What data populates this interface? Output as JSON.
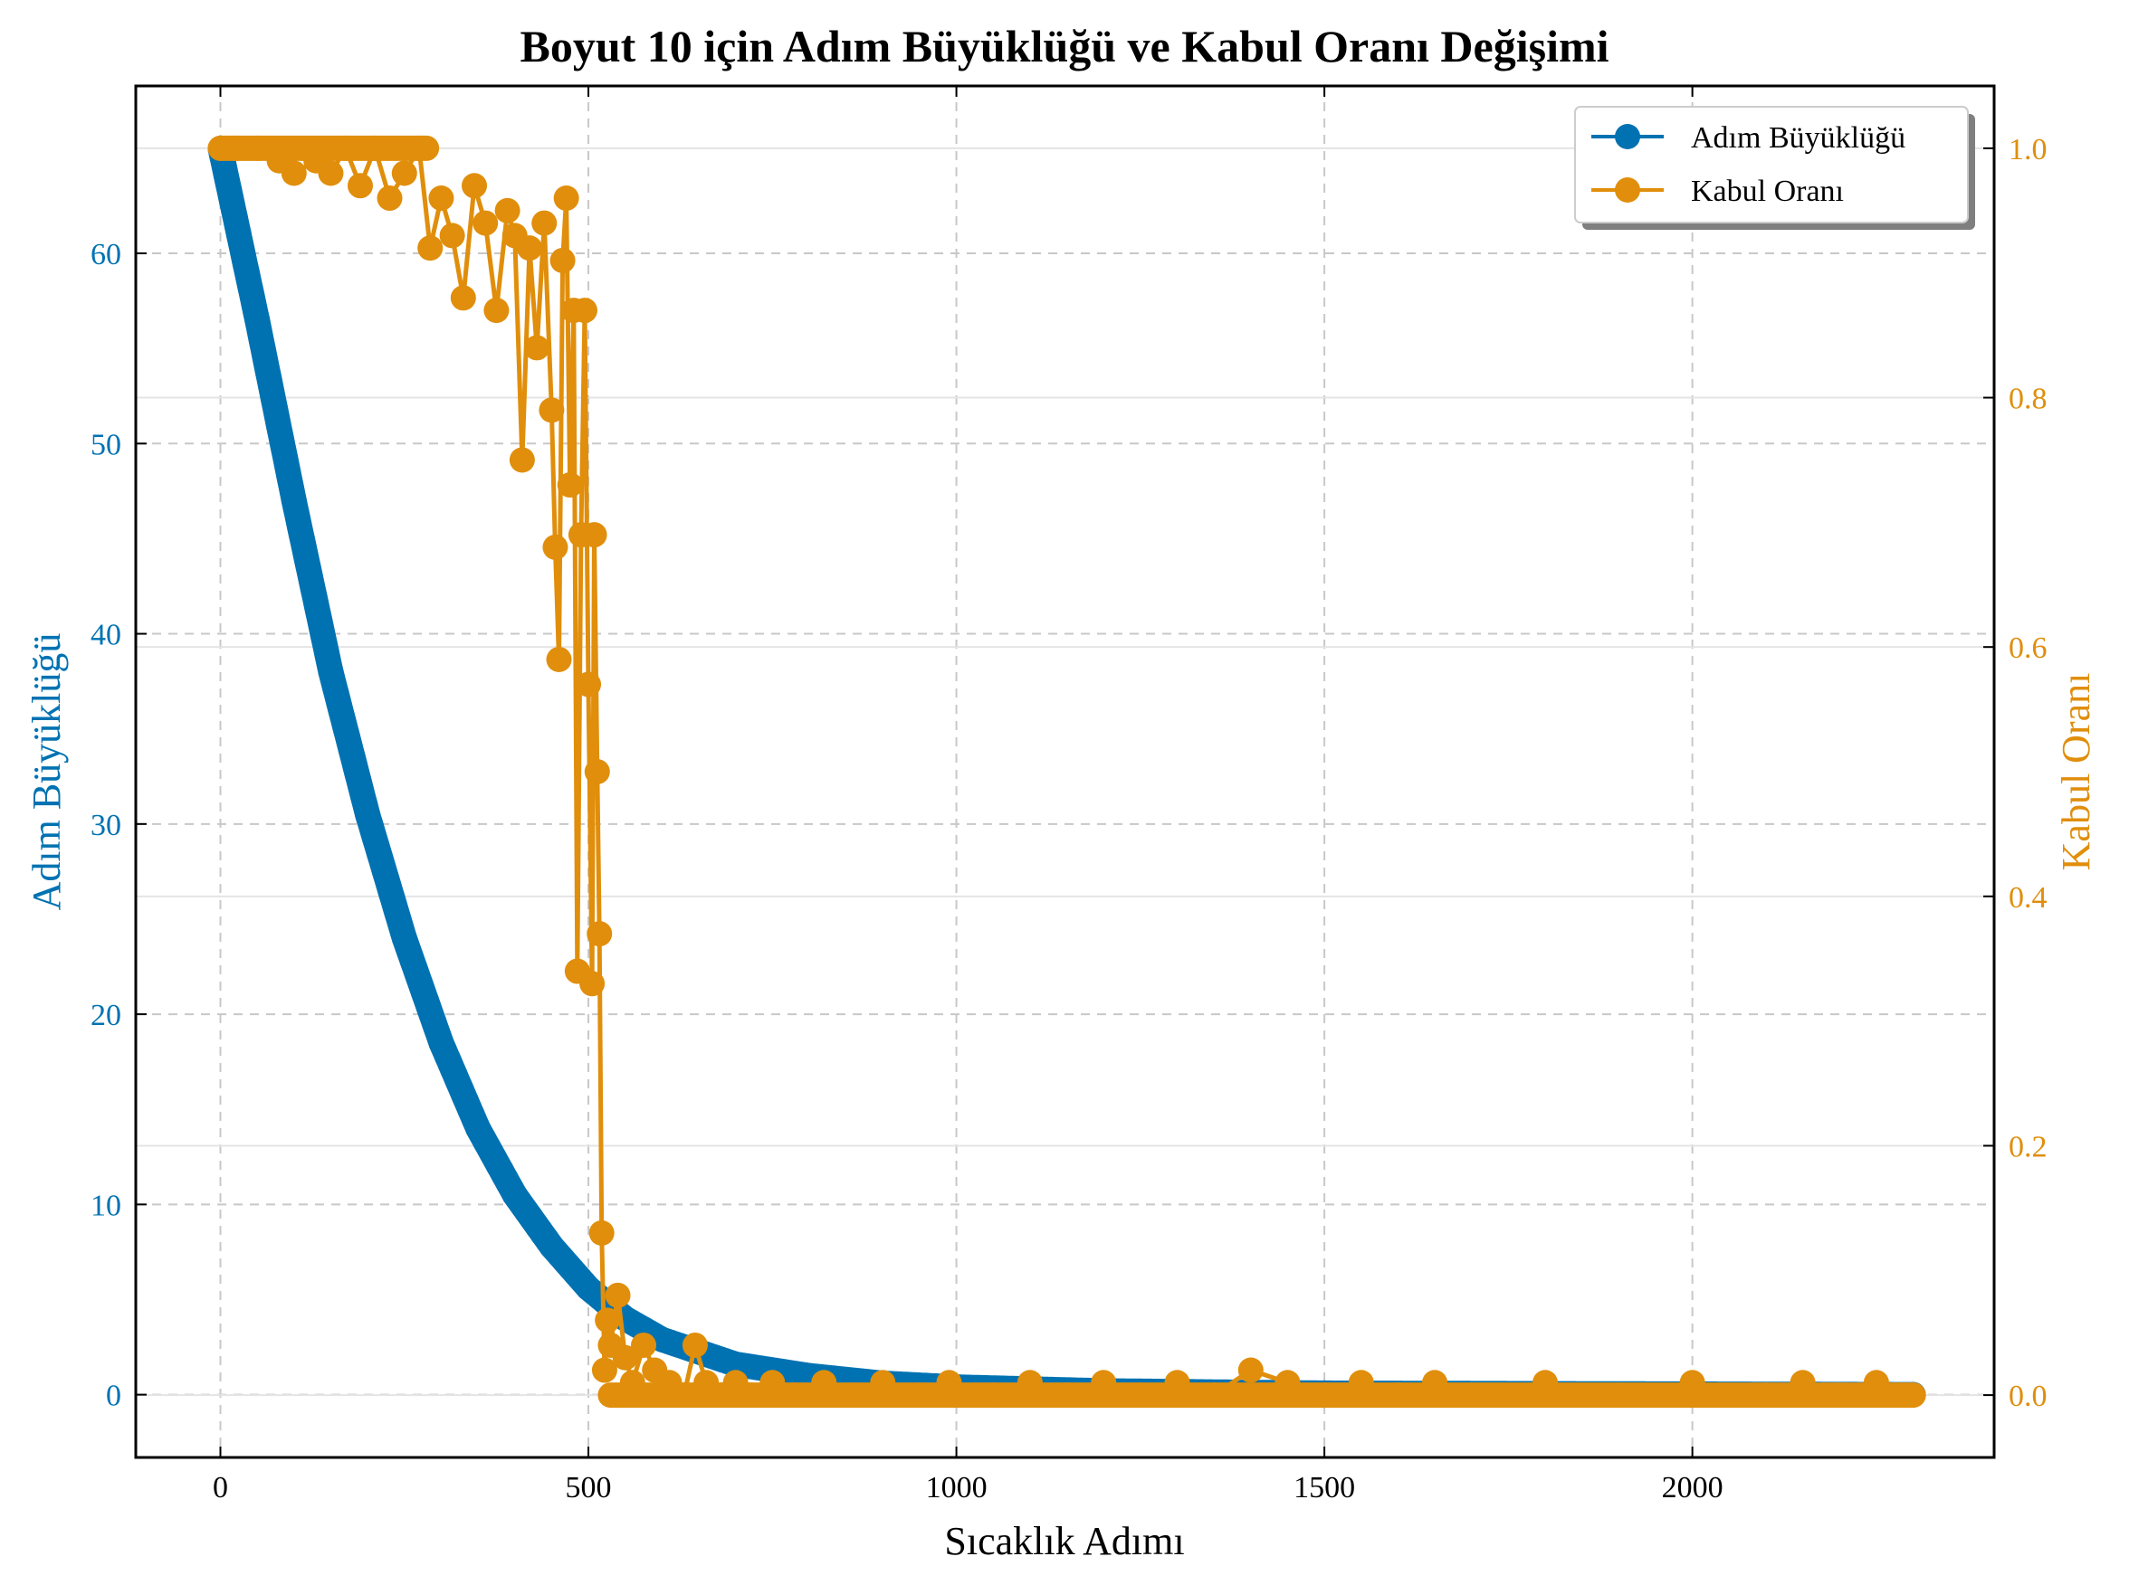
{
  "chart_data": {
    "type": "line",
    "title": "Boyut 10 için Adım Büyüklüğü ve Kabul Oranı Değişimi",
    "xlabel": "Sıcaklık Adımı",
    "ylabel_left": "Adım Büyüklüğü",
    "ylabel_right": "Kabul Oranı",
    "xlim": [
      -115,
      2410
    ],
    "ylim_left": [
      -3.3,
      68.8
    ],
    "ylim_right": [
      -0.05,
      1.05
    ],
    "x_ticks": [
      0,
      500,
      1000,
      1500,
      2000
    ],
    "y_ticks_left": [
      0,
      10,
      20,
      30,
      40,
      50,
      60
    ],
    "y_ticks_right": [
      "0.0",
      "0.2",
      "0.4",
      "0.6",
      "0.8",
      "1.0"
    ],
    "grid": true,
    "legend_position": "top-right",
    "colors": {
      "step": "#0072B2",
      "accept": "#E08E0B"
    },
    "series": [
      {
        "name": "Adım Büyüklüğü",
        "axis": "left",
        "model": "exponential decay",
        "x_range": [
          0,
          2300
        ],
        "points": [
          [
            0,
            65.5
          ],
          [
            25,
            61.0
          ],
          [
            50,
            56.5
          ],
          [
            100,
            47.0
          ],
          [
            150,
            38.0
          ],
          [
            200,
            30.5
          ],
          [
            250,
            24.0
          ],
          [
            300,
            18.5
          ],
          [
            350,
            14.0
          ],
          [
            400,
            10.5
          ],
          [
            450,
            7.8
          ],
          [
            500,
            5.6
          ],
          [
            550,
            4.0
          ],
          [
            600,
            2.9
          ],
          [
            700,
            1.6
          ],
          [
            800,
            1.0
          ],
          [
            900,
            0.6
          ],
          [
            1000,
            0.4
          ],
          [
            1200,
            0.2
          ],
          [
            1500,
            0.08
          ],
          [
            2000,
            0.03
          ],
          [
            2300,
            0.0
          ]
        ]
      },
      {
        "name": "Kabul Oranı",
        "axis": "right",
        "points": [
          [
            0,
            1.0
          ],
          [
            20,
            1.0
          ],
          [
            50,
            1.0
          ],
          [
            80,
            0.99
          ],
          [
            100,
            0.98
          ],
          [
            130,
            0.99
          ],
          [
            150,
            0.98
          ],
          [
            170,
            1.0
          ],
          [
            190,
            0.97
          ],
          [
            210,
            1.0
          ],
          [
            230,
            0.96
          ],
          [
            250,
            0.98
          ],
          [
            270,
            1.0
          ],
          [
            285,
            0.92
          ],
          [
            300,
            0.96
          ],
          [
            315,
            0.93
          ],
          [
            330,
            0.88
          ],
          [
            345,
            0.97
          ],
          [
            360,
            0.94
          ],
          [
            375,
            0.87
          ],
          [
            390,
            0.95
          ],
          [
            400,
            0.93
          ],
          [
            410,
            0.75
          ],
          [
            420,
            0.92
          ],
          [
            430,
            0.84
          ],
          [
            440,
            0.94
          ],
          [
            450,
            0.79
          ],
          [
            455,
            0.68
          ],
          [
            460,
            0.59
          ],
          [
            465,
            0.91
          ],
          [
            470,
            0.96
          ],
          [
            475,
            0.73
          ],
          [
            480,
            0.87
          ],
          [
            485,
            0.34
          ],
          [
            490,
            0.69
          ],
          [
            495,
            0.87
          ],
          [
            500,
            0.57
          ],
          [
            505,
            0.33
          ],
          [
            508,
            0.69
          ],
          [
            512,
            0.5
          ],
          [
            515,
            0.37
          ],
          [
            518,
            0.13
          ],
          [
            522,
            0.02
          ],
          [
            526,
            0.06
          ],
          [
            530,
            0.04
          ],
          [
            540,
            0.08
          ],
          [
            550,
            0.03
          ],
          [
            560,
            0.01
          ],
          [
            575,
            0.04
          ],
          [
            590,
            0.02
          ],
          [
            610,
            0.01
          ],
          [
            630,
            0.0
          ],
          [
            645,
            0.04
          ],
          [
            660,
            0.01
          ],
          [
            680,
            0.0
          ],
          [
            700,
            0.01
          ],
          [
            720,
            0.0
          ],
          [
            750,
            0.01
          ],
          [
            780,
            0.0
          ],
          [
            820,
            0.01
          ],
          [
            860,
            0.0
          ],
          [
            900,
            0.01
          ],
          [
            950,
            0.0
          ],
          [
            990,
            0.01
          ],
          [
            1050,
            0.0
          ],
          [
            1100,
            0.01
          ],
          [
            1150,
            0.0
          ],
          [
            1200,
            0.01
          ],
          [
            1250,
            0.0
          ],
          [
            1300,
            0.01
          ],
          [
            1350,
            0.0
          ],
          [
            1400,
            0.02
          ],
          [
            1450,
            0.01
          ],
          [
            1500,
            0.0
          ],
          [
            1550,
            0.01
          ],
          [
            1600,
            0.0
          ],
          [
            1650,
            0.01
          ],
          [
            1700,
            0.0
          ],
          [
            1800,
            0.01
          ],
          [
            1900,
            0.0
          ],
          [
            2000,
            0.01
          ],
          [
            2100,
            0.0
          ],
          [
            2150,
            0.01
          ],
          [
            2200,
            0.0
          ],
          [
            2250,
            0.01
          ],
          [
            2300,
            0.0
          ]
        ]
      }
    ]
  }
}
